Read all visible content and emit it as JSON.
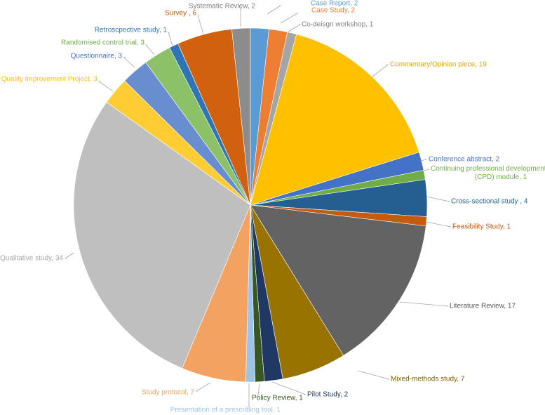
{
  "chart_data": {
    "type": "pie",
    "legend": "none",
    "slices": [
      {
        "label": "Case Report",
        "value": 2,
        "text": "Case Report, 2",
        "color": "#5b9bd5"
      },
      {
        "label": "Case Study",
        "value": 2,
        "text": "Case Study, 2",
        "color": "#ed7d31"
      },
      {
        "label": "Co-deisgn workshop",
        "value": 1,
        "text": "Co-deisgn workshop, 1",
        "color": "#a5a5a5"
      },
      {
        "label": "Commentary/Opinion piece",
        "value": 19,
        "text": "Commentary/Opinion piece, 19",
        "color": "#ffc000"
      },
      {
        "label": "Conference abstract",
        "value": 2,
        "text": "Conference abstract, 2",
        "color": "#4472c4"
      },
      {
        "label": "Continuing professional development (CPD) module",
        "value": 1,
        "text": "Continuing professional development (CPD) module, 1",
        "color": "#70ad47"
      },
      {
        "label": "Cross-sectional study",
        "value": 4,
        "text": "Cross-sectional study , 4",
        "color": "#255e91"
      },
      {
        "label": "Feasibility Study",
        "value": 1,
        "text": "Feasibility Study, 1",
        "color": "#c55a11"
      },
      {
        "label": "Literature Review",
        "value": 17,
        "text": "Literature Review, 17",
        "color": "#636363"
      },
      {
        "label": "Mixed-methods study",
        "value": 7,
        "text": "Mixed-methods study, 7",
        "color": "#997300"
      },
      {
        "label": "Pilot Study",
        "value": 2,
        "text": "Pilot Study, 2",
        "color": "#203864"
      },
      {
        "label": "Policy Review",
        "value": 1,
        "text": "Policy Review, 1",
        "color": "#375623"
      },
      {
        "label": "Presentation of a prescribing tool",
        "value": 1,
        "text": "Presentation of a prescribing tool, 1",
        "color": "#9dc3e6"
      },
      {
        "label": "Study protocol",
        "value": 7,
        "text": "Study protocol, 7",
        "color": "#f4a261"
      },
      {
        "label": "Qualitative study",
        "value": 34,
        "text": "Qualitative study, 34",
        "color": "#bfbfbf"
      },
      {
        "label": "Quality Improvement Project",
        "value": 3,
        "text": "Quality Improvement Project, 3",
        "color": "#ffcd33"
      },
      {
        "label": "Questionnaire",
        "value": 3,
        "text": "Questionnaire, 3",
        "color": "#698ed0"
      },
      {
        "label": "Randomised control trial",
        "value": 3,
        "text": "Randomised control trial, 3",
        "color": "#8cc168"
      },
      {
        "label": "Retroscpective study",
        "value": 1,
        "text": "Retroscpective study, 1",
        "color": "#2e75b6"
      },
      {
        "label": "Survey",
        "value": 6,
        "text": "Survey , 6",
        "color": "#d2610f"
      },
      {
        "label": "Systematic Review",
        "value": 2,
        "text": "Systematic Review, 2",
        "color": "#8c8c8c"
      }
    ]
  }
}
